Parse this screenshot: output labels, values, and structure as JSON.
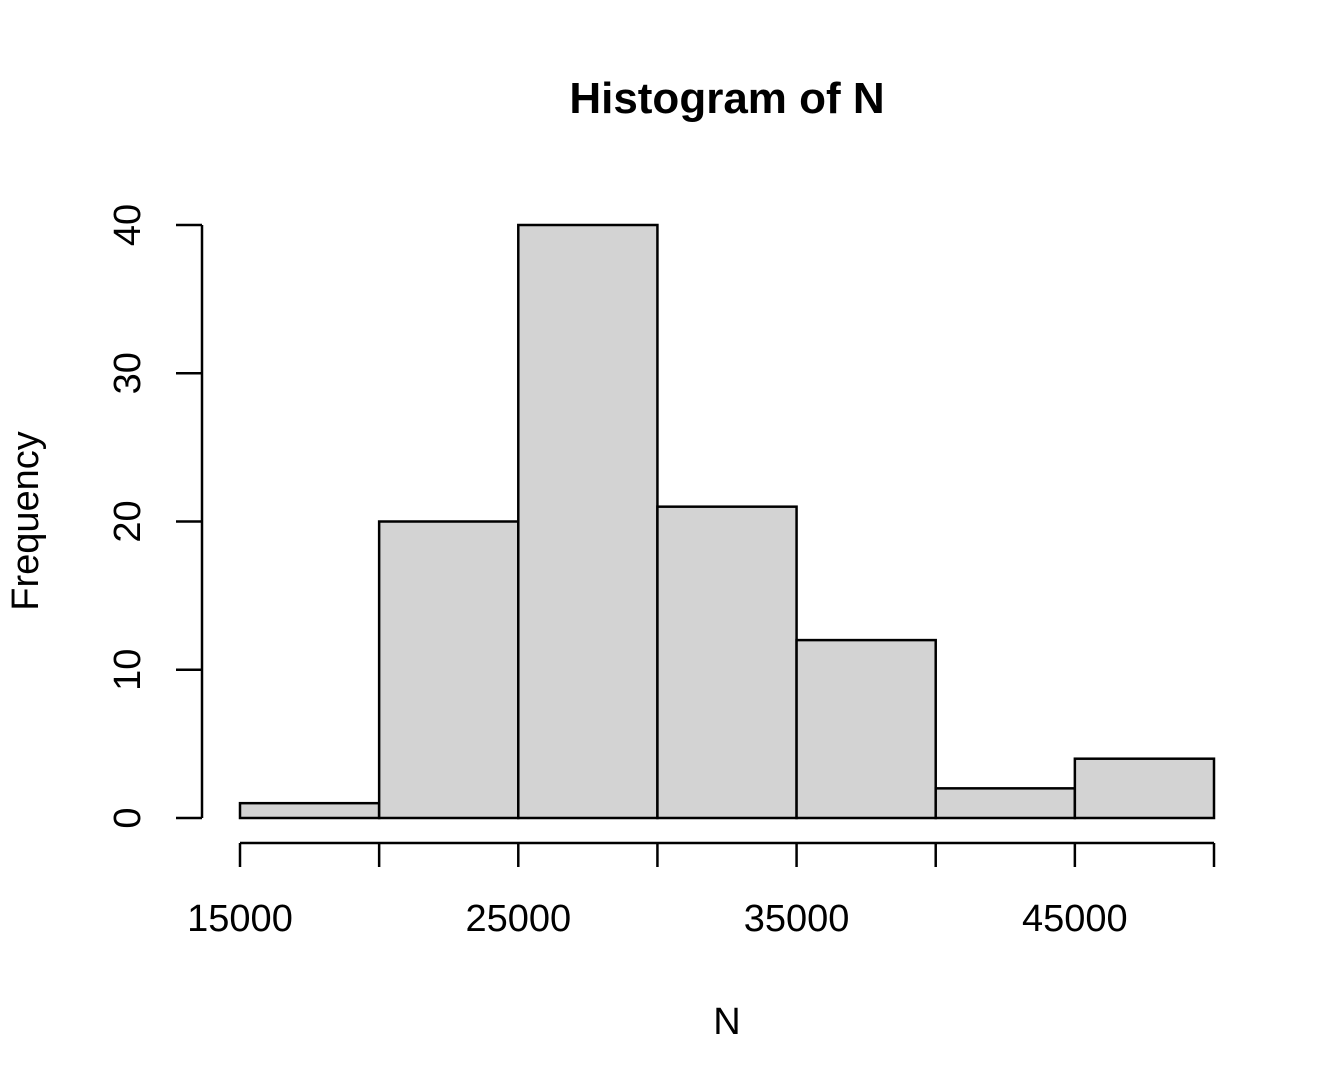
{
  "chart_data": {
    "type": "bar",
    "subtype": "histogram",
    "title": "Histogram of N",
    "xlabel": "N",
    "ylabel": "Frequency",
    "bins": [
      {
        "start": 15000,
        "end": 20000,
        "count": 1
      },
      {
        "start": 20000,
        "end": 25000,
        "count": 20
      },
      {
        "start": 25000,
        "end": 30000,
        "count": 40
      },
      {
        "start": 30000,
        "end": 35000,
        "count": 21
      },
      {
        "start": 35000,
        "end": 40000,
        "count": 12
      },
      {
        "start": 40000,
        "end": 45000,
        "count": 2
      },
      {
        "start": 45000,
        "end": 50000,
        "count": 4
      }
    ],
    "xlim": [
      15000,
      50000
    ],
    "ylim": [
      0,
      40
    ],
    "x_ticks": [
      15000,
      20000,
      25000,
      30000,
      35000,
      40000,
      45000,
      50000
    ],
    "x_tick_labels": [
      {
        "value": 15000,
        "label": "15000"
      },
      {
        "value": 25000,
        "label": "25000"
      },
      {
        "value": 35000,
        "label": "35000"
      },
      {
        "value": 45000,
        "label": "45000"
      }
    ],
    "y_ticks": [
      0,
      10,
      20,
      30,
      40
    ],
    "y_tick_labels": [
      "0",
      "10",
      "20",
      "30",
      "40"
    ],
    "grid": false,
    "legend": "none",
    "bar_fill": "#d3d3d3",
    "bar_stroke": "#000000"
  }
}
